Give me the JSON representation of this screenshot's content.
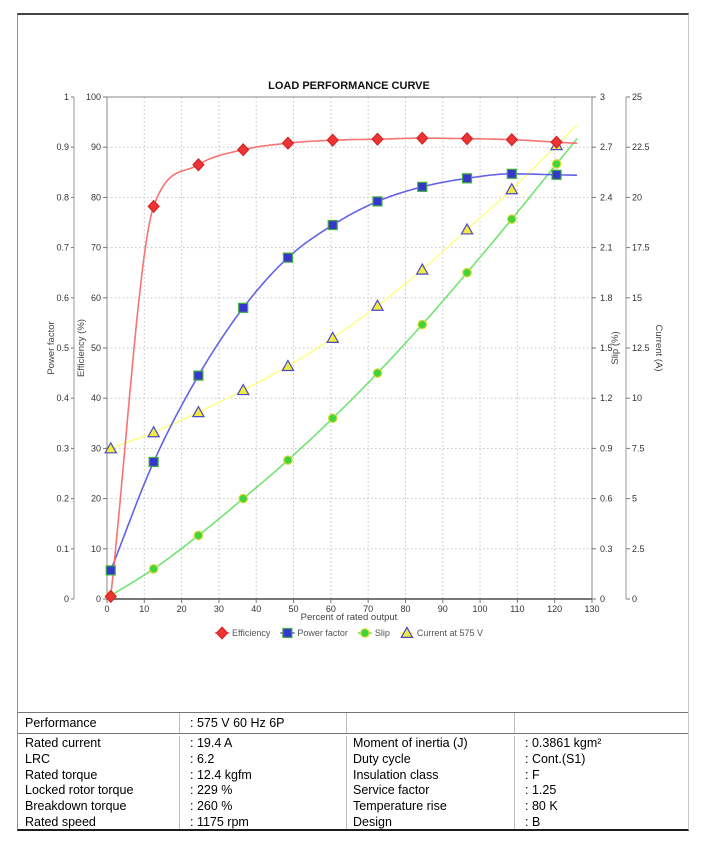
{
  "chart_data": {
    "type": "line",
    "title": "LOAD PERFORMANCE CURVE",
    "xlabel": "Percent of rated output",
    "x_range": [
      0,
      130
    ],
    "x_tick_step": 10,
    "grid": true,
    "legend_position": "bottom",
    "grid_color": "#c4c4c4",
    "axes": {
      "power_factor": {
        "title": "Power factor",
        "side": "left",
        "range": [
          0,
          1
        ],
        "tick_step": 0.1
      },
      "efficiency": {
        "title": "Efficiency (%)",
        "side": "left",
        "range": [
          0,
          100
        ],
        "tick_step": 10
      },
      "slip": {
        "title": "Slip (%)",
        "side": "right",
        "range": [
          0,
          3
        ],
        "tick_step": 0.3
      },
      "current": {
        "title": "Current (A)",
        "side": "right",
        "range": [
          0,
          25
        ],
        "tick_step": 2.5
      }
    },
    "x": [
      1,
      12.5,
      24.5,
      36.5,
      48.5,
      60.5,
      72.5,
      84.5,
      96.5,
      108.5,
      120.5
    ],
    "series": [
      {
        "name": "Efficiency",
        "axis": "efficiency",
        "marker": "diamond",
        "marker_color": "#ee3434",
        "marker_stroke": "#d42424",
        "line_color": "#f96b6b",
        "values": [
          0.5,
          78.2,
          86.5,
          89.5,
          90.8,
          91.4,
          91.6,
          91.8,
          91.7,
          91.5,
          91.0
        ]
      },
      {
        "name": "Power factor",
        "axis": "power_factor",
        "marker": "square",
        "marker_color": "#3636cf",
        "marker_stroke": "#3fae3f",
        "line_color": "#5a5ae8",
        "values": [
          0.057,
          0.273,
          0.445,
          0.58,
          0.68,
          0.745,
          0.792,
          0.821,
          0.838,
          0.847,
          0.845
        ]
      },
      {
        "name": "Slip",
        "axis": "slip",
        "marker": "circle",
        "marker_color": "#3ed43e",
        "marker_stroke": "#d8d832",
        "line_color": "#69e369",
        "values": [
          0.02,
          0.18,
          0.38,
          0.6,
          0.83,
          1.08,
          1.35,
          1.64,
          1.95,
          2.27,
          2.6
        ]
      },
      {
        "name": "Current at 575 V",
        "axis": "current",
        "marker": "triangle",
        "marker_color": "#f3ea3e",
        "marker_stroke": "#4a4ac8",
        "line_color": "#ffff85",
        "values": [
          7.5,
          8.3,
          9.3,
          10.4,
          11.6,
          13.0,
          14.6,
          16.4,
          18.4,
          20.4,
          22.6
        ]
      }
    ],
    "draw_order": [
      2,
      3,
      1,
      0
    ]
  },
  "spec_table": {
    "performance": {
      "label": "Performance",
      "value": ": 575 V 60 Hz 6P"
    },
    "left_rows": [
      {
        "label": "Rated current",
        "value": ": 19.4 A"
      },
      {
        "label": "LRC",
        "value": ": 6.2"
      },
      {
        "label": "Rated torque",
        "value": ": 12.4 kgfm"
      },
      {
        "label": "Locked rotor torque",
        "value": ": 229 %"
      },
      {
        "label": "Breakdown torque",
        "value": ": 260 %"
      },
      {
        "label": "Rated speed",
        "value": ": 1175 rpm"
      }
    ],
    "right_rows": [
      {
        "label": "Moment of inertia (J)",
        "value": ": 0.3861 kgm²"
      },
      {
        "label": "Duty cycle",
        "value": ": Cont.(S1)"
      },
      {
        "label": "Insulation class",
        "value": ": F"
      },
      {
        "label": "Service factor",
        "value": ": 1.25"
      },
      {
        "label": "Temperature rise",
        "value": ": 80 K"
      },
      {
        "label": "Design",
        "value": ": B"
      }
    ]
  }
}
